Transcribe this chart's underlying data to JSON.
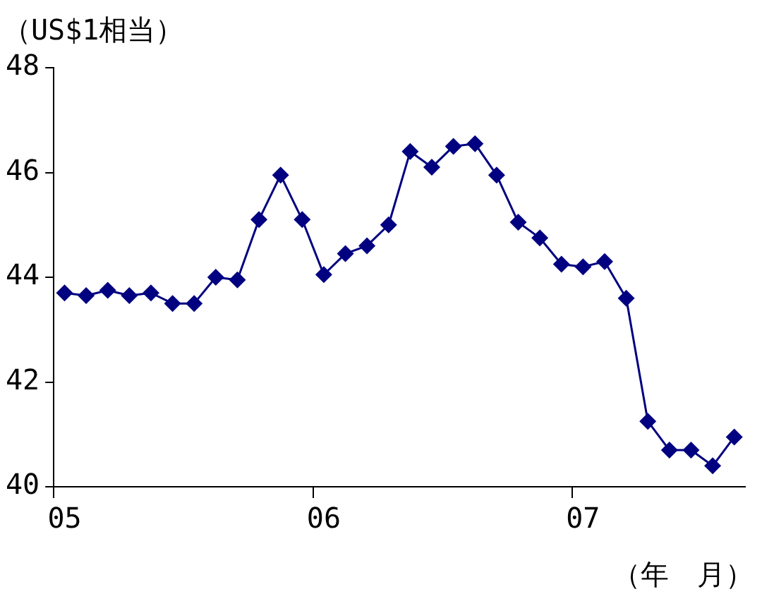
{
  "chart_data": {
    "type": "line",
    "ylabel": "（US$1相当）",
    "xlabel": "（年　月）",
    "categories": [
      "05",
      null,
      null,
      null,
      null,
      null,
      null,
      null,
      null,
      null,
      null,
      null,
      "06",
      null,
      null,
      null,
      null,
      null,
      null,
      null,
      null,
      null,
      null,
      null,
      "07",
      null,
      null,
      null,
      null,
      null,
      null,
      null
    ],
    "series": [
      {
        "color": "#000080",
        "values": [
          43.7,
          43.65,
          43.75,
          43.65,
          43.7,
          43.5,
          43.5,
          44.0,
          43.95,
          45.1,
          45.95,
          45.1,
          44.05,
          44.45,
          44.6,
          45.0,
          46.4,
          46.1,
          46.5,
          46.55,
          45.95,
          45.05,
          44.75,
          44.25,
          44.2,
          44.3,
          43.6,
          41.25,
          40.7,
          40.7,
          40.4,
          40.95
        ]
      }
    ],
    "ylim": [
      40,
      48
    ],
    "yticks": [
      40,
      42,
      44,
      46,
      48
    ],
    "grid": false,
    "legend": false,
    "marker": "diamond",
    "line_style": "solid"
  }
}
